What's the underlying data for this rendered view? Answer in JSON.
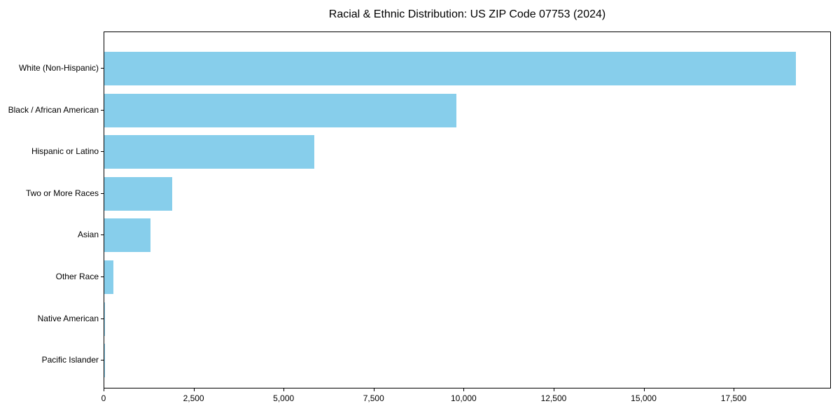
{
  "chart_data": {
    "type": "bar",
    "orientation": "horizontal",
    "title": "Racial & Ethnic Distribution: US ZIP Code 07753 (2024)",
    "categories": [
      "White (Non-Hispanic)",
      "Black / African American",
      "Hispanic or Latino",
      "Two or More Races",
      "Asian",
      "Other Race",
      "Native American",
      "Pacific Islander"
    ],
    "values": [
      19200,
      9780,
      5840,
      1890,
      1280,
      250,
      20,
      10
    ],
    "xlabel": "",
    "ylabel": "",
    "xlim": [
      0,
      20200
    ],
    "xticks": [
      0,
      2500,
      5000,
      7500,
      10000,
      12500,
      15000,
      17500
    ],
    "xtick_labels": [
      "0",
      "2,500",
      "5,000",
      "7,500",
      "10,000",
      "12,500",
      "15,000",
      "17,500"
    ],
    "bar_color": "#87CEEB",
    "text_color": "#000000",
    "grid": false,
    "legend": null
  }
}
